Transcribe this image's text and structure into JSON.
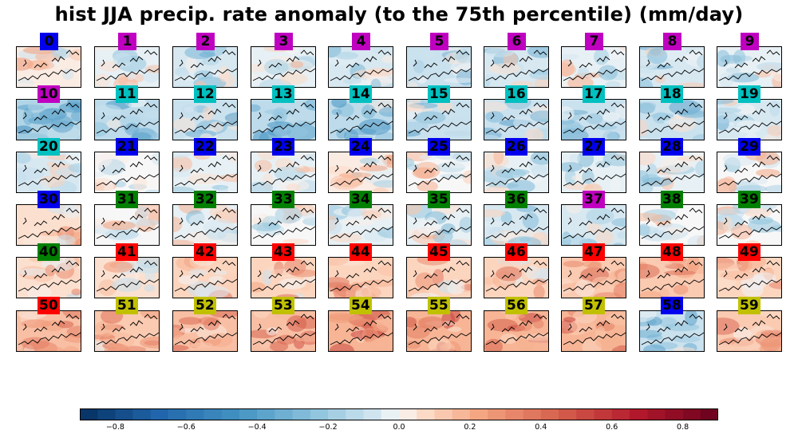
{
  "chart_data": {
    "type": "heatmap",
    "title": "hist JJA precip. rate anomaly (to the 75th percentile) (mm/day)",
    "panel_labels": [
      "0",
      "1",
      "2",
      "3",
      "4",
      "5",
      "6",
      "7",
      "8",
      "9",
      "10",
      "11",
      "12",
      "13",
      "14",
      "15",
      "16",
      "17",
      "18",
      "19",
      "20",
      "21",
      "22",
      "23",
      "24",
      "25",
      "26",
      "27",
      "28",
      "29",
      "30",
      "31",
      "32",
      "33",
      "34",
      "35",
      "36",
      "37",
      "38",
      "39",
      "40",
      "41",
      "42",
      "43",
      "44",
      "45",
      "46",
      "47",
      "48",
      "49",
      "50",
      "51",
      "52",
      "53",
      "54",
      "55",
      "56",
      "57",
      "58",
      "59"
    ],
    "panel_label_colors": [
      "#0000ee",
      "#c000c0",
      "#c000c0",
      "#c000c0",
      "#c000c0",
      "#c000c0",
      "#c000c0",
      "#c000c0",
      "#c000c0",
      "#c000c0",
      "#c000c0",
      "#00c0c0",
      "#00c0c0",
      "#00c0c0",
      "#00c0c0",
      "#00c0c0",
      "#00c0c0",
      "#00c0c0",
      "#00c0c0",
      "#00c0c0",
      "#00c0c0",
      "#0000ee",
      "#0000ee",
      "#0000ee",
      "#0000ee",
      "#0000ee",
      "#0000ee",
      "#0000ee",
      "#0000ee",
      "#0000ee",
      "#0000ee",
      "#008000",
      "#008000",
      "#008000",
      "#008000",
      "#008000",
      "#008000",
      "#c000c0",
      "#008000",
      "#008000",
      "#008000",
      "#ff0000",
      "#ff0000",
      "#ff0000",
      "#ff0000",
      "#ff0000",
      "#ff0000",
      "#ff0000",
      "#ff0000",
      "#ff0000",
      "#ff0000",
      "#c0c000",
      "#c0c000",
      "#c0c000",
      "#c0c000",
      "#c0c000",
      "#c0c000",
      "#c0c000",
      "#0000ee",
      "#c0c000"
    ],
    "panel_mean_anomaly": [
      0.05,
      -0.05,
      -0.1,
      -0.05,
      -0.1,
      -0.15,
      -0.1,
      -0.05,
      -0.1,
      -0.05,
      -0.25,
      -0.2,
      -0.15,
      -0.2,
      -0.2,
      -0.15,
      -0.15,
      -0.15,
      -0.15,
      -0.1,
      -0.1,
      0.0,
      -0.05,
      -0.05,
      0.05,
      0.0,
      -0.05,
      -0.05,
      -0.05,
      0.0,
      0.1,
      0.0,
      -0.05,
      0.0,
      -0.05,
      -0.05,
      -0.1,
      -0.1,
      0.0,
      0.0,
      0.1,
      0.1,
      0.15,
      0.15,
      0.15,
      0.15,
      0.15,
      0.2,
      0.2,
      0.15,
      0.25,
      0.2,
      0.25,
      0.25,
      0.3,
      0.3,
      0.3,
      0.3,
      -0.15,
      0.2
    ],
    "colorbar": {
      "vmin": -0.9,
      "vmax": 0.9,
      "n_levels": 36,
      "cmap": "RdBu_r",
      "ticks": [
        "-0.8",
        "-0.6",
        "-0.4",
        "-0.2",
        "0.0",
        "0.2",
        "0.4",
        "0.6",
        "0.8"
      ],
      "tick_values": [
        -0.8,
        -0.6,
        -0.4,
        -0.2,
        0.0,
        0.2,
        0.4,
        0.6,
        0.8
      ]
    }
  }
}
